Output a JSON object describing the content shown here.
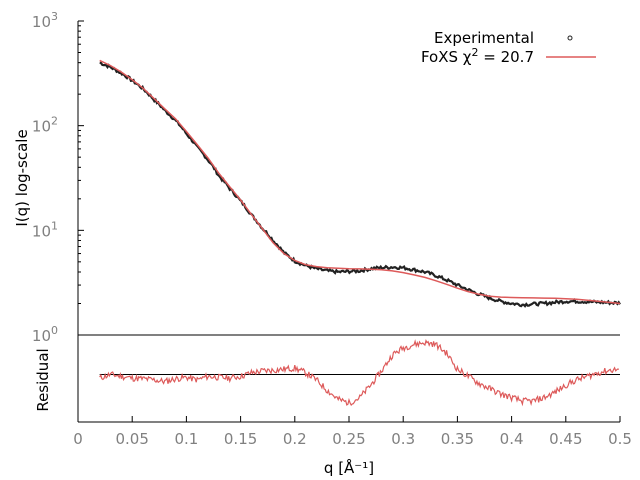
{
  "chart_data": [
    {
      "type": "scatter",
      "panel": "main",
      "xlabel": "q [Å⁻¹]",
      "ylabel": "I(q) log-scale",
      "y_scale": "log",
      "xlim": [
        0,
        0.5
      ],
      "ylim": [
        1,
        1000
      ],
      "y_ticks": [
        {
          "value": 1,
          "base": "10",
          "exp": "0"
        },
        {
          "value": 10,
          "base": "10",
          "exp": "1"
        },
        {
          "value": 100,
          "base": "10",
          "exp": "2"
        },
        {
          "value": 1000,
          "base": "10",
          "exp": "3"
        }
      ],
      "grid": false,
      "legend_position": "top-right",
      "legend": {
        "experimental": "Experimental",
        "fit_prefix": "FoXS χ",
        "fit_sup": "2",
        "fit_suffix": " = 20.7"
      },
      "series": [
        {
          "name": "Experimental",
          "style": "points",
          "color": "#222222",
          "points": [
            [
              0.02,
              400
            ],
            [
              0.03,
              362
            ],
            [
              0.04,
              318
            ],
            [
              0.05,
              270
            ],
            [
              0.06,
              225
            ],
            [
              0.07,
              178
            ],
            [
              0.08,
              140
            ],
            [
              0.09,
              112
            ],
            [
              0.1,
              84
            ],
            [
              0.11,
              62
            ],
            [
              0.12,
              47
            ],
            [
              0.13,
              33
            ],
            [
              0.14,
              25
            ],
            [
              0.15,
              19
            ],
            [
              0.16,
              14
            ],
            [
              0.17,
              10.5
            ],
            [
              0.18,
              8
            ],
            [
              0.19,
              6.1
            ],
            [
              0.2,
              5.1
            ],
            [
              0.21,
              4.6
            ],
            [
              0.22,
              4.3
            ],
            [
              0.23,
              4.1
            ],
            [
              0.24,
              4.0
            ],
            [
              0.25,
              4.05
            ],
            [
              0.26,
              4.1
            ],
            [
              0.27,
              4.3
            ],
            [
              0.28,
              4.4
            ],
            [
              0.29,
              4.45
            ],
            [
              0.3,
              4.4
            ],
            [
              0.31,
              4.2
            ],
            [
              0.32,
              4.0
            ],
            [
              0.33,
              3.7
            ],
            [
              0.34,
              3.35
            ],
            [
              0.35,
              3.0
            ],
            [
              0.36,
              2.7
            ],
            [
              0.37,
              2.45
            ],
            [
              0.38,
              2.25
            ],
            [
              0.39,
              2.1
            ],
            [
              0.4,
              2.0
            ],
            [
              0.41,
              1.95
            ],
            [
              0.42,
              1.98
            ],
            [
              0.43,
              2.0
            ],
            [
              0.44,
              2.05
            ],
            [
              0.45,
              2.1
            ],
            [
              0.46,
              2.1
            ],
            [
              0.47,
              2.08
            ],
            [
              0.48,
              2.06
            ],
            [
              0.49,
              2.04
            ],
            [
              0.5,
              2.02
            ]
          ]
        },
        {
          "name": "FoXS χ2 = 20.7",
          "style": "line",
          "color": "#dd5a5a",
          "points": [
            [
              0.02,
              420
            ],
            [
              0.03,
              375
            ],
            [
              0.04,
              325
            ],
            [
              0.05,
              275
            ],
            [
              0.06,
              228
            ],
            [
              0.07,
              182
            ],
            [
              0.08,
              145
            ],
            [
              0.09,
              116
            ],
            [
              0.1,
              88
            ],
            [
              0.11,
              66
            ],
            [
              0.12,
              49
            ],
            [
              0.13,
              35
            ],
            [
              0.14,
              26
            ],
            [
              0.15,
              19.5
            ],
            [
              0.16,
              14.2
            ],
            [
              0.17,
              10.4
            ],
            [
              0.18,
              7.6
            ],
            [
              0.19,
              6.0
            ],
            [
              0.2,
              5.15
            ],
            [
              0.21,
              4.7
            ],
            [
              0.22,
              4.5
            ],
            [
              0.23,
              4.4
            ],
            [
              0.24,
              4.35
            ],
            [
              0.25,
              4.3
            ],
            [
              0.26,
              4.28
            ],
            [
              0.27,
              4.25
            ],
            [
              0.28,
              4.2
            ],
            [
              0.29,
              4.1
            ],
            [
              0.3,
              3.95
            ],
            [
              0.31,
              3.75
            ],
            [
              0.32,
              3.55
            ],
            [
              0.33,
              3.3
            ],
            [
              0.34,
              3.05
            ],
            [
              0.35,
              2.8
            ],
            [
              0.36,
              2.6
            ],
            [
              0.37,
              2.45
            ],
            [
              0.38,
              2.35
            ],
            [
              0.39,
              2.3
            ],
            [
              0.4,
              2.28
            ],
            [
              0.41,
              2.27
            ],
            [
              0.42,
              2.26
            ],
            [
              0.43,
              2.25
            ],
            [
              0.44,
              2.24
            ],
            [
              0.45,
              2.22
            ],
            [
              0.46,
              2.2
            ],
            [
              0.47,
              2.15
            ],
            [
              0.48,
              2.1
            ],
            [
              0.49,
              2.05
            ],
            [
              0.5,
              2.0
            ]
          ]
        }
      ]
    },
    {
      "type": "line",
      "panel": "residual",
      "xlabel": "q [Å⁻¹]",
      "ylabel": "Residual",
      "xlim": [
        0,
        0.5
      ],
      "ylim": [
        -1,
        1
      ],
      "x_ticks": [
        0,
        0.05,
        0.1,
        0.15,
        0.2,
        0.25,
        0.3,
        0.35,
        0.4,
        0.45,
        0.5
      ],
      "x_tick_labels": [
        "0",
        "0.05",
        "0.1",
        "0.15",
        "0.2",
        "0.25",
        "0.3",
        "0.35",
        "0.4",
        "0.45",
        "0.5"
      ],
      "grid": false,
      "baseline": 0,
      "series": [
        {
          "name": "Residual",
          "color": "#dd5a5a",
          "points": [
            [
              0.02,
              -0.1
            ],
            [
              0.03,
              0.0
            ],
            [
              0.04,
              -0.05
            ],
            [
              0.05,
              -0.1
            ],
            [
              0.06,
              -0.12
            ],
            [
              0.07,
              -0.15
            ],
            [
              0.08,
              -0.2
            ],
            [
              0.09,
              -0.12
            ],
            [
              0.1,
              -0.08
            ],
            [
              0.11,
              -0.15
            ],
            [
              0.12,
              -0.05
            ],
            [
              0.13,
              -0.08
            ],
            [
              0.14,
              -0.1
            ],
            [
              0.15,
              -0.05
            ],
            [
              0.16,
              0.05
            ],
            [
              0.17,
              0.1
            ],
            [
              0.18,
              0.12
            ],
            [
              0.19,
              0.15
            ],
            [
              0.2,
              0.18
            ],
            [
              0.21,
              0.05
            ],
            [
              0.22,
              -0.15
            ],
            [
              0.23,
              -0.45
            ],
            [
              0.24,
              -0.7
            ],
            [
              0.25,
              -0.8
            ],
            [
              0.26,
              -0.65
            ],
            [
              0.27,
              -0.3
            ],
            [
              0.28,
              0.1
            ],
            [
              0.29,
              0.55
            ],
            [
              0.3,
              0.75
            ],
            [
              0.31,
              0.85
            ],
            [
              0.32,
              0.9
            ],
            [
              0.33,
              0.85
            ],
            [
              0.34,
              0.6
            ],
            [
              0.35,
              0.15
            ],
            [
              0.36,
              -0.05
            ],
            [
              0.37,
              -0.25
            ],
            [
              0.38,
              -0.4
            ],
            [
              0.39,
              -0.55
            ],
            [
              0.4,
              -0.65
            ],
            [
              0.41,
              -0.75
            ],
            [
              0.42,
              -0.75
            ],
            [
              0.43,
              -0.65
            ],
            [
              0.44,
              -0.5
            ],
            [
              0.45,
              -0.3
            ],
            [
              0.46,
              -0.15
            ],
            [
              0.47,
              -0.05
            ],
            [
              0.48,
              0.05
            ],
            [
              0.49,
              0.12
            ],
            [
              0.5,
              0.15
            ]
          ]
        }
      ]
    }
  ]
}
